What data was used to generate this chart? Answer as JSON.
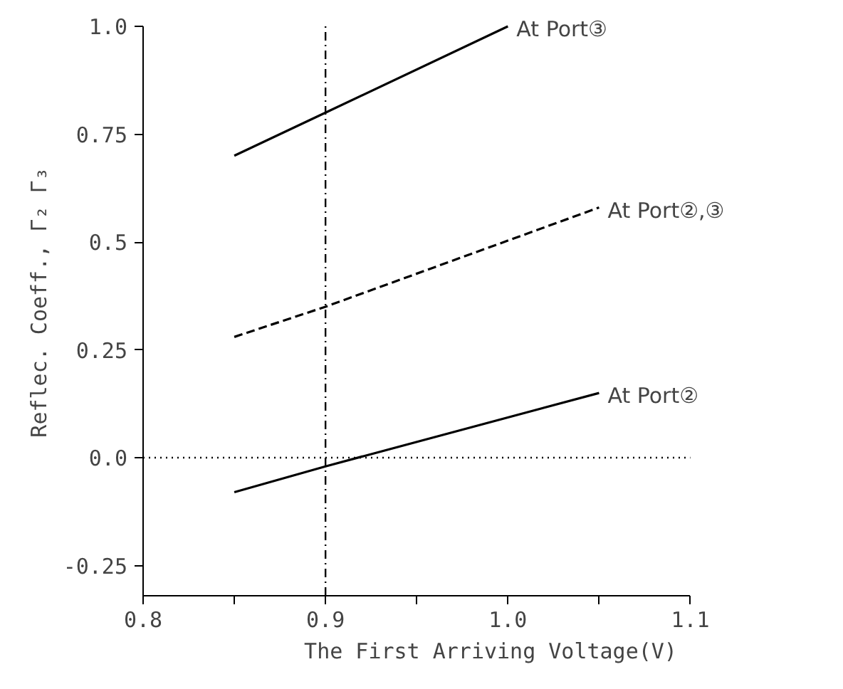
{
  "chart_data": {
    "type": "line",
    "xlabel": "The First Arriving Voltage(V)",
    "ylabel": "Reflec. Coeff., Γ₂ Γ₃",
    "xlim": [
      0.8,
      1.1
    ],
    "ylim": [
      -0.32,
      1.0
    ],
    "xticks": [
      {
        "value": 0.8,
        "label": "0.8"
      },
      {
        "value": 0.85,
        "label": null
      },
      {
        "value": 0.9,
        "label": "0.9"
      },
      {
        "value": 0.95,
        "label": null
      },
      {
        "value": 1.0,
        "label": "1.0"
      },
      {
        "value": 1.05,
        "label": null
      },
      {
        "value": 1.1,
        "label": "1.1"
      }
    ],
    "yticks": [
      {
        "value": -0.25,
        "label": "-0.25"
      },
      {
        "value": 0.0,
        "label": "0.0"
      },
      0.25,
      0.5,
      0.75,
      {
        "value": 1.0,
        "label": "1.0"
      }
    ],
    "x": [
      0.85,
      0.9,
      1.05
    ],
    "series": [
      {
        "name": "At Port③",
        "color": "#000000",
        "line_style": "solid",
        "x": [
          0.85,
          0.9,
          1.0
        ],
        "values": [
          0.7,
          0.8,
          1.0
        ]
      },
      {
        "name": "At Port②,③",
        "color": "#000000",
        "line_style": "dashed",
        "values": [
          0.28,
          0.35,
          0.58
        ]
      },
      {
        "name": "At Port②",
        "color": "#000000",
        "line_style": "solid",
        "values": [
          -0.08,
          -0.02,
          0.15
        ]
      }
    ],
    "ref_lines": [
      {
        "axis": "x",
        "value": 0.9,
        "label": null,
        "color": "#000000",
        "line_style": "dashdot"
      },
      {
        "axis": "y",
        "value": 0.0,
        "label": null,
        "color": "#000000",
        "line_style": "dotted"
      }
    ]
  }
}
